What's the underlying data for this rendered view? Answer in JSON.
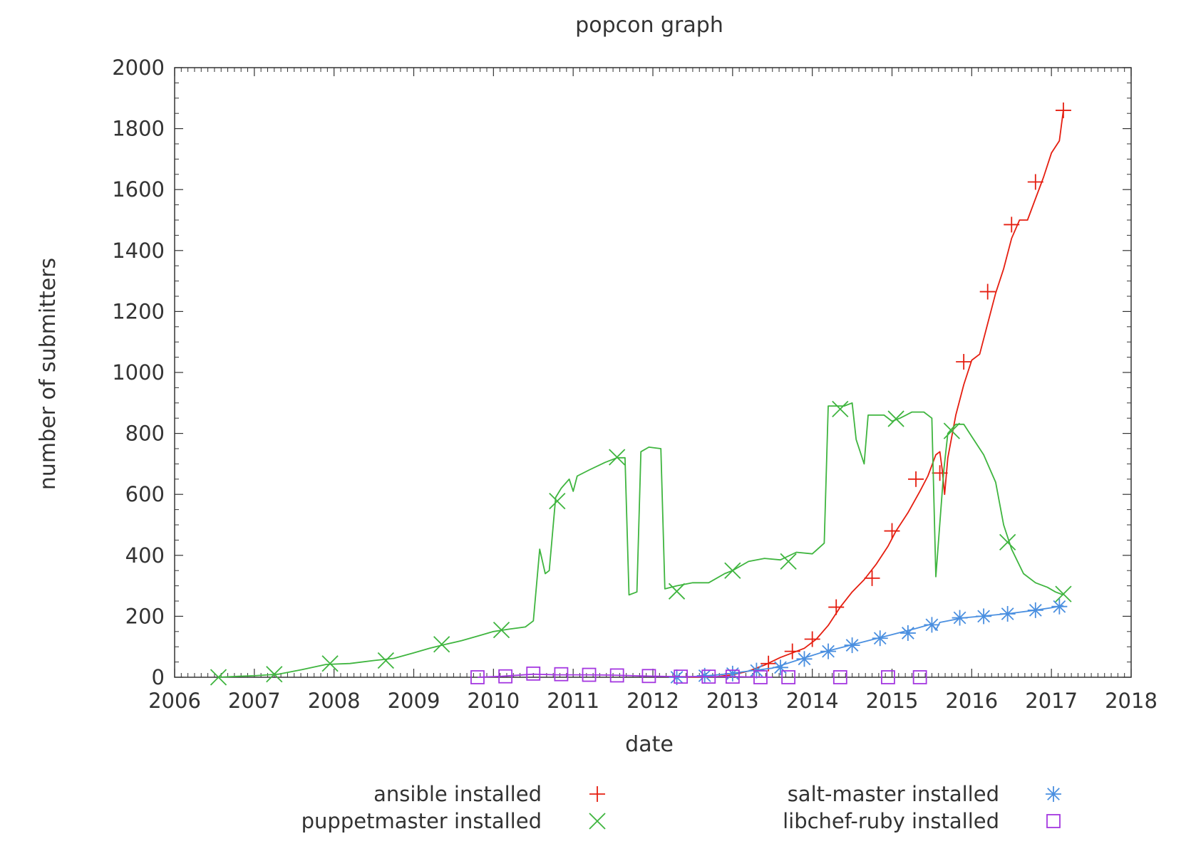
{
  "chart_data": {
    "type": "line",
    "title": "popcon graph",
    "xlabel": "date",
    "ylabel": "number of submitters",
    "xlim": [
      2006,
      2018
    ],
    "ylim": [
      0,
      2000
    ],
    "x_ticks": [
      "2006",
      "2007",
      "2008",
      "2009",
      "2010",
      "2011",
      "2012",
      "2013",
      "2014",
      "2015",
      "2016",
      "2017",
      "2018"
    ],
    "y_ticks": [
      "0",
      "200",
      "400",
      "600",
      "800",
      "1000",
      "1200",
      "1400",
      "1600",
      "1800",
      "2000"
    ],
    "grid": false,
    "legend_position": "bottom",
    "series": [
      {
        "name": "ansible installed",
        "color": "#e51e10",
        "marker": "plus",
        "points": [
          [
            2012.35,
            0
          ],
          [
            2012.8,
            2
          ],
          [
            2013.0,
            8
          ],
          [
            2013.2,
            20
          ],
          [
            2013.4,
            40
          ],
          [
            2013.6,
            65
          ],
          [
            2013.75,
            80
          ],
          [
            2013.9,
            95
          ],
          [
            2014.05,
            125
          ],
          [
            2014.2,
            170
          ],
          [
            2014.35,
            230
          ],
          [
            2014.5,
            280
          ],
          [
            2014.65,
            320
          ],
          [
            2014.8,
            370
          ],
          [
            2014.95,
            430
          ],
          [
            2015.05,
            480
          ],
          [
            2015.2,
            540
          ],
          [
            2015.35,
            610
          ],
          [
            2015.45,
            660
          ],
          [
            2015.55,
            730
          ],
          [
            2015.6,
            740
          ],
          [
            2015.63,
            680
          ],
          [
            2015.66,
            600
          ],
          [
            2015.7,
            720
          ],
          [
            2015.8,
            860
          ],
          [
            2015.9,
            960
          ],
          [
            2016.0,
            1040
          ],
          [
            2016.1,
            1060
          ],
          [
            2016.2,
            1160
          ],
          [
            2016.3,
            1260
          ],
          [
            2016.4,
            1340
          ],
          [
            2016.5,
            1440
          ],
          [
            2016.6,
            1500
          ],
          [
            2016.7,
            1500
          ],
          [
            2016.8,
            1570
          ],
          [
            2016.9,
            1640
          ],
          [
            2017.0,
            1720
          ],
          [
            2017.1,
            1760
          ],
          [
            2017.15,
            1860
          ]
        ],
        "marker_points": [
          [
            2013.45,
            45
          ],
          [
            2013.75,
            85
          ],
          [
            2014.0,
            125
          ],
          [
            2014.3,
            230
          ],
          [
            2014.75,
            325
          ],
          [
            2015.0,
            480
          ],
          [
            2015.3,
            650
          ],
          [
            2015.6,
            670
          ],
          [
            2015.9,
            1035
          ],
          [
            2016.2,
            1265
          ],
          [
            2016.5,
            1485
          ],
          [
            2016.8,
            1625
          ],
          [
            2017.15,
            1860
          ]
        ]
      },
      {
        "name": "puppetmaster installed",
        "color": "#3fb53f",
        "marker": "cross",
        "points": [
          [
            2006.55,
            0
          ],
          [
            2006.8,
            3
          ],
          [
            2007.0,
            5
          ],
          [
            2007.3,
            10
          ],
          [
            2007.6,
            25
          ],
          [
            2007.9,
            42
          ],
          [
            2008.2,
            45
          ],
          [
            2008.5,
            55
          ],
          [
            2008.75,
            62
          ],
          [
            2009.0,
            80
          ],
          [
            2009.2,
            95
          ],
          [
            2009.4,
            108
          ],
          [
            2009.6,
            120
          ],
          [
            2009.8,
            135
          ],
          [
            2010.0,
            150
          ],
          [
            2010.2,
            158
          ],
          [
            2010.4,
            165
          ],
          [
            2010.5,
            185
          ],
          [
            2010.58,
            420
          ],
          [
            2010.65,
            340
          ],
          [
            2010.7,
            350
          ],
          [
            2010.78,
            590
          ],
          [
            2010.85,
            620
          ],
          [
            2010.95,
            650
          ],
          [
            2011.0,
            610
          ],
          [
            2011.05,
            660
          ],
          [
            2011.2,
            680
          ],
          [
            2011.4,
            705
          ],
          [
            2011.55,
            720
          ],
          [
            2011.65,
            720
          ],
          [
            2011.7,
            270
          ],
          [
            2011.8,
            280
          ],
          [
            2011.85,
            740
          ],
          [
            2011.95,
            755
          ],
          [
            2012.1,
            750
          ],
          [
            2012.15,
            290
          ],
          [
            2012.3,
            300
          ],
          [
            2012.5,
            310
          ],
          [
            2012.7,
            310
          ],
          [
            2012.9,
            340
          ],
          [
            2013.0,
            350
          ],
          [
            2013.2,
            380
          ],
          [
            2013.4,
            390
          ],
          [
            2013.6,
            385
          ],
          [
            2013.8,
            410
          ],
          [
            2014.0,
            405
          ],
          [
            2014.15,
            440
          ],
          [
            2014.2,
            890
          ],
          [
            2014.4,
            890
          ],
          [
            2014.5,
            900
          ],
          [
            2014.55,
            780
          ],
          [
            2014.65,
            700
          ],
          [
            2014.7,
            860
          ],
          [
            2014.9,
            860
          ],
          [
            2015.0,
            840
          ],
          [
            2015.1,
            850
          ],
          [
            2015.25,
            870
          ],
          [
            2015.4,
            870
          ],
          [
            2015.5,
            850
          ],
          [
            2015.55,
            330
          ],
          [
            2015.65,
            680
          ],
          [
            2015.7,
            800
          ],
          [
            2015.8,
            830
          ],
          [
            2015.9,
            830
          ],
          [
            2016.0,
            790
          ],
          [
            2016.15,
            730
          ],
          [
            2016.3,
            640
          ],
          [
            2016.4,
            500
          ],
          [
            2016.5,
            420
          ],
          [
            2016.65,
            340
          ],
          [
            2016.8,
            310
          ],
          [
            2016.95,
            295
          ],
          [
            2017.05,
            280
          ],
          [
            2017.15,
            270
          ]
        ],
        "marker_points": [
          [
            2006.55,
            0
          ],
          [
            2007.25,
            10
          ],
          [
            2007.95,
            45
          ],
          [
            2008.65,
            55
          ],
          [
            2009.35,
            108
          ],
          [
            2010.1,
            155
          ],
          [
            2010.8,
            578
          ],
          [
            2011.55,
            722
          ],
          [
            2012.3,
            282
          ],
          [
            2013.0,
            350
          ],
          [
            2013.7,
            380
          ],
          [
            2014.35,
            880
          ],
          [
            2015.05,
            848
          ],
          [
            2015.75,
            808
          ],
          [
            2016.45,
            443
          ],
          [
            2017.15,
            273
          ]
        ]
      },
      {
        "name": "salt-master installed",
        "color": "#4a8fe0",
        "marker": "star",
        "points": [
          [
            2012.3,
            0
          ],
          [
            2012.6,
            3
          ],
          [
            2012.9,
            10
          ],
          [
            2013.2,
            20
          ],
          [
            2013.5,
            30
          ],
          [
            2013.8,
            55
          ],
          [
            2014.1,
            80
          ],
          [
            2014.4,
            100
          ],
          [
            2014.7,
            120
          ],
          [
            2015.0,
            140
          ],
          [
            2015.3,
            160
          ],
          [
            2015.5,
            175
          ],
          [
            2015.55,
            155
          ],
          [
            2015.6,
            180
          ],
          [
            2015.9,
            195
          ],
          [
            2016.2,
            202
          ],
          [
            2016.5,
            210
          ],
          [
            2016.8,
            220
          ],
          [
            2017.0,
            228
          ],
          [
            2017.15,
            235
          ]
        ],
        "marker_points": [
          [
            2012.3,
            0
          ],
          [
            2012.65,
            5
          ],
          [
            2013.0,
            12
          ],
          [
            2013.3,
            22
          ],
          [
            2013.6,
            32
          ],
          [
            2013.9,
            60
          ],
          [
            2014.2,
            85
          ],
          [
            2014.5,
            105
          ],
          [
            2014.85,
            128
          ],
          [
            2015.2,
            145
          ],
          [
            2015.5,
            172
          ],
          [
            2015.85,
            195
          ],
          [
            2016.15,
            200
          ],
          [
            2016.45,
            208
          ],
          [
            2016.8,
            220
          ],
          [
            2017.1,
            232
          ]
        ]
      },
      {
        "name": "libchef-ruby installed",
        "color": "#a437e0",
        "marker": "square",
        "points": [
          [
            2009.8,
            0
          ],
          [
            2010.1,
            3
          ],
          [
            2010.5,
            10
          ],
          [
            2010.8,
            8
          ],
          [
            2011.2,
            8
          ],
          [
            2011.5,
            7
          ],
          [
            2011.9,
            4
          ],
          [
            2012.3,
            2
          ],
          [
            2012.7,
            2
          ],
          [
            2013.0,
            2
          ],
          [
            2013.5,
            0
          ]
        ],
        "marker_points": [
          [
            2009.8,
            0
          ],
          [
            2010.15,
            3
          ],
          [
            2010.5,
            12
          ],
          [
            2010.85,
            10
          ],
          [
            2011.2,
            8
          ],
          [
            2011.55,
            6
          ],
          [
            2011.95,
            4
          ],
          [
            2012.35,
            2
          ],
          [
            2012.7,
            2
          ],
          [
            2013.0,
            2
          ],
          [
            2013.35,
            0
          ],
          [
            2013.7,
            0
          ],
          [
            2014.35,
            0
          ],
          [
            2014.95,
            0
          ],
          [
            2015.35,
            0
          ]
        ]
      }
    ]
  }
}
